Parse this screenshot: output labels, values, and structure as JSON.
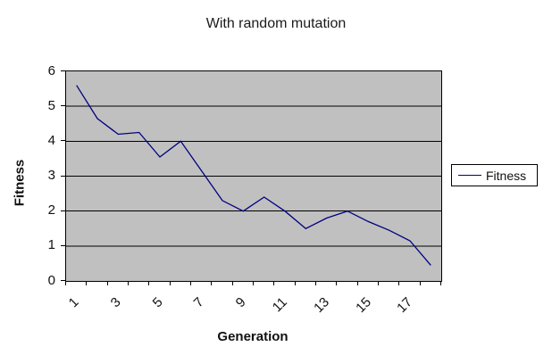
{
  "chart_data": {
    "type": "line",
    "title": "With random mutation",
    "xlabel": "Generation",
    "ylabel": "Fitness",
    "legend": [
      "Fitness"
    ],
    "legend_position": "right",
    "x": [
      1,
      2,
      3,
      4,
      5,
      6,
      7,
      8,
      9,
      10,
      11,
      12,
      13,
      14,
      15,
      16,
      17,
      18
    ],
    "series": [
      {
        "name": "Fitness",
        "values": [
          5.6,
          4.65,
          4.2,
          4.25,
          3.55,
          4.0,
          3.15,
          2.3,
          2.0,
          2.4,
          2.0,
          1.5,
          1.8,
          2.0,
          1.7,
          1.45,
          1.15,
          0.45
        ]
      }
    ],
    "ylim": [
      0,
      6
    ],
    "yticks": [
      "0",
      "1",
      "2",
      "3",
      "4",
      "5",
      "6"
    ],
    "xtick_labels": [
      "1",
      "3",
      "5",
      "7",
      "9",
      "11",
      "13",
      "15",
      "17"
    ],
    "grid": true,
    "colors": {
      "series": "#000080",
      "plot_bg": "#c0c0c0",
      "grid": "#000000",
      "axis": "#000000",
      "text": "#111111",
      "background": "#ffffff"
    }
  }
}
